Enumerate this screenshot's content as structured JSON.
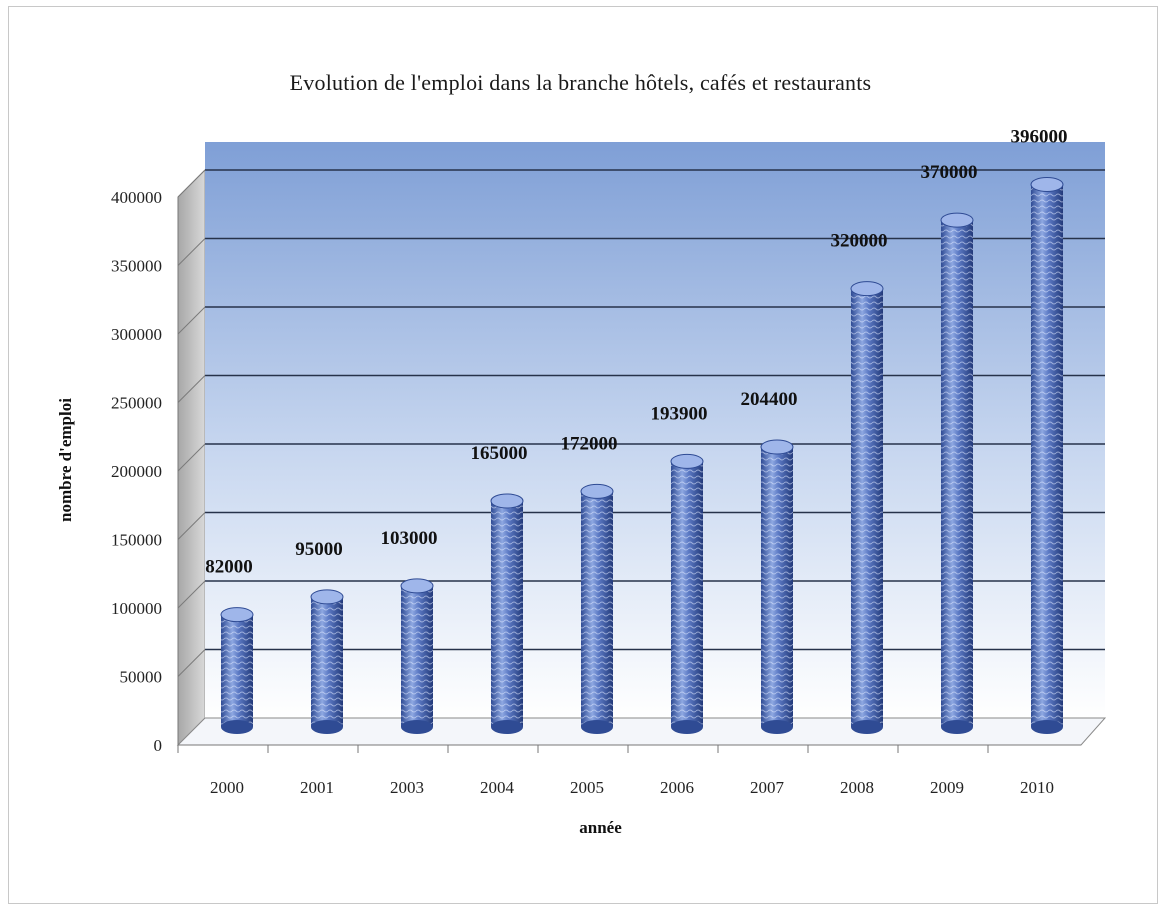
{
  "chart_data": {
    "type": "bar",
    "style": "3d-cylinder",
    "title": "Evolution de l'emploi dans la branche hôtels, cafés et restaurants",
    "xlabel": "année",
    "ylabel": "nombre d'emploi",
    "ylim": [
      0,
      400000
    ],
    "yticks": [
      "0",
      "50000",
      "100000",
      "150000",
      "200000",
      "250000",
      "300000",
      "350000",
      "400000"
    ],
    "grid": true,
    "legend": "none",
    "categories": [
      "2000",
      "2001",
      "2003",
      "2004",
      "2005",
      "2006",
      "2007",
      "2008",
      "2009",
      "2010"
    ],
    "values": [
      82000,
      95000,
      103000,
      165000,
      172000,
      193900,
      204400,
      320000,
      370000,
      396000
    ],
    "data_labels": [
      "82000",
      "95000",
      "103000",
      "165000",
      "172000",
      "193900",
      "204400",
      "320000",
      "370000",
      "396000"
    ],
    "colors": {
      "bar": "#5b79c4",
      "bar_dark": "#2f4b94",
      "bar_light": "#a9bde9",
      "wall_top": "#7f9fd6",
      "wall_bottom": "#ffffff",
      "grid": "#26324a"
    }
  }
}
